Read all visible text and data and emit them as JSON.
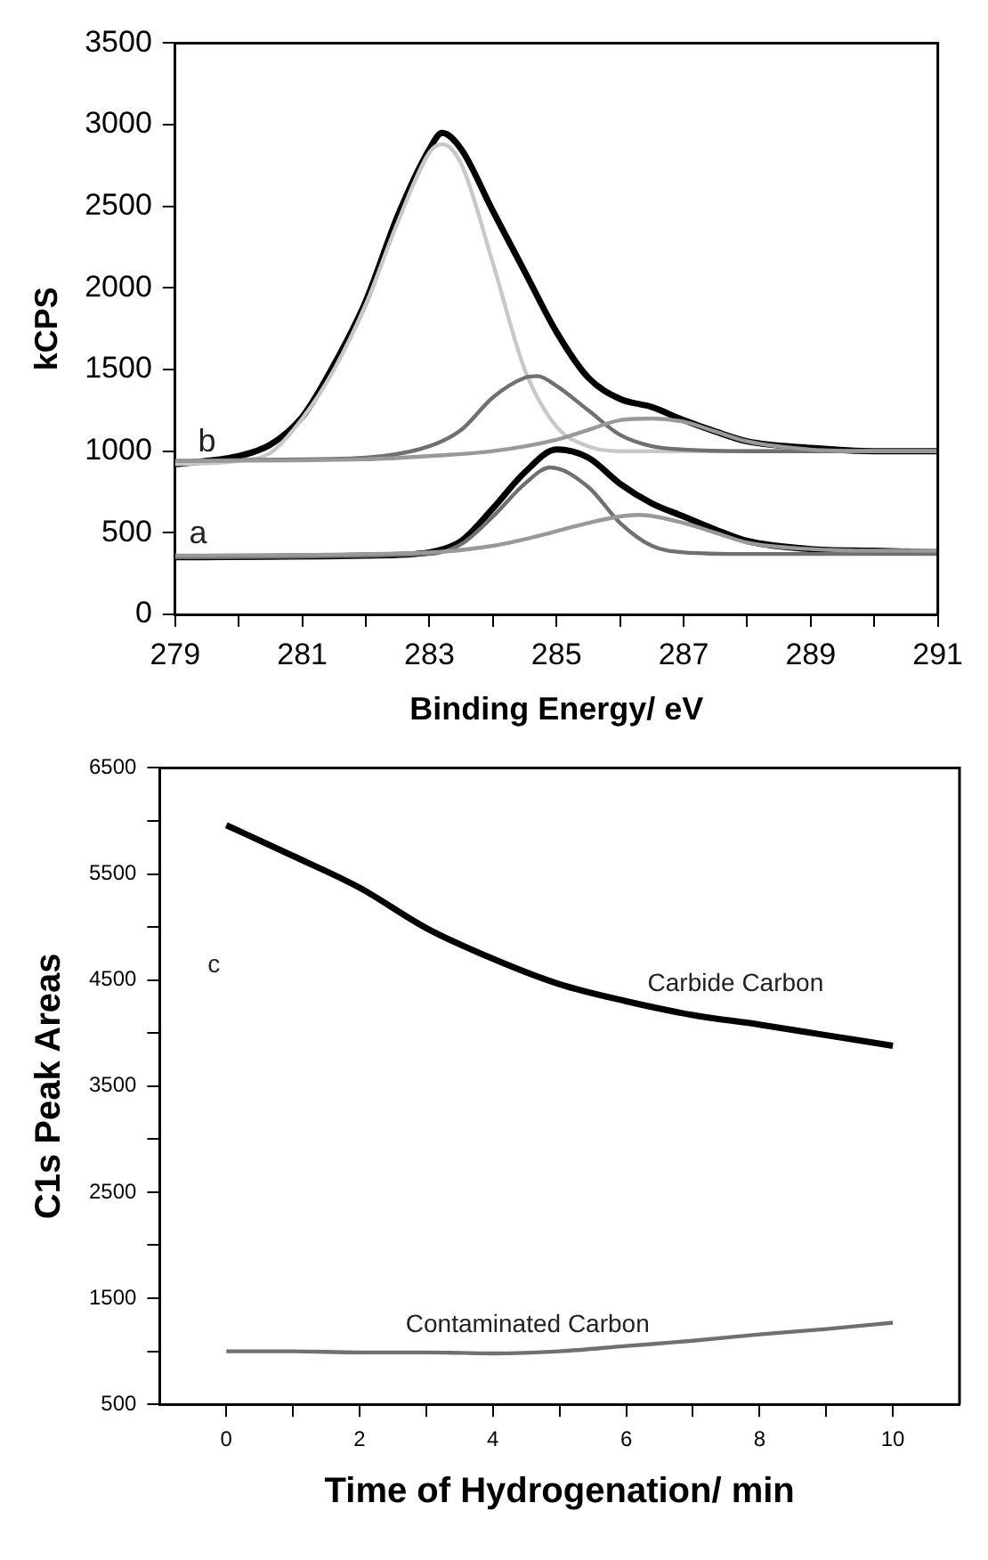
{
  "chart_data": [
    {
      "type": "line",
      "xlabel": "Binding Energy/ eV",
      "ylabel": "kCPS",
      "xlim": [
        279,
        291
      ],
      "ylim": [
        0,
        3500
      ],
      "xticks": [
        279,
        {
          "value": 280,
          "label": null
        },
        281,
        {
          "value": 282,
          "label": null
        },
        283,
        {
          "value": 284,
          "label": null
        },
        285,
        {
          "value": 286,
          "label": null
        },
        287,
        {
          "value": 288,
          "label": null
        },
        289,
        {
          "value": 290,
          "label": null
        },
        291
      ],
      "yticks": [
        0,
        500,
        1000,
        1500,
        2000,
        2500,
        3000,
        3500
      ],
      "grid": false,
      "legend": false,
      "marker": "none",
      "line_style": "solid",
      "annotations": [
        "b",
        "a"
      ],
      "series": [
        {
          "color": "#999999",
          "x": [
            279,
            282,
            283,
            284,
            285,
            285.5,
            286,
            286.5,
            287,
            287.5,
            288,
            289,
            290,
            291
          ],
          "values": [
            940,
            950,
            970,
            1000,
            1070,
            1130,
            1190,
            1200,
            1180,
            1120,
            1060,
            1010,
            1000,
            1000
          ]
        },
        {
          "color": "#707070",
          "x": [
            279,
            281,
            282,
            283,
            283.5,
            284,
            284.5,
            284.7,
            285,
            285.5,
            286,
            286.5,
            287,
            288,
            291
          ],
          "values": [
            940,
            950,
            960,
            1030,
            1130,
            1330,
            1450,
            1460,
            1400,
            1250,
            1100,
            1030,
            1010,
            1000,
            1000
          ]
        },
        {
          "color": "#c8c8c8",
          "x": [
            279,
            280,
            280.5,
            281,
            281.5,
            282,
            282.5,
            283,
            283.2,
            283.5,
            284,
            284.5,
            285,
            285.5,
            286,
            287,
            291
          ],
          "values": [
            920,
            940,
            990,
            1200,
            1500,
            1900,
            2400,
            2830,
            2880,
            2760,
            2150,
            1500,
            1150,
            1030,
            1000,
            1000,
            1000
          ]
        },
        {
          "color": "#000000",
          "x": [
            279,
            280,
            280.5,
            281,
            281.5,
            282,
            282.5,
            283,
            283.2,
            283.5,
            284,
            284.5,
            285,
            285.5,
            286,
            286.5,
            287,
            287.5,
            288,
            289,
            290,
            291
          ],
          "values": [
            920,
            970,
            1040,
            1210,
            1530,
            1920,
            2440,
            2850,
            2950,
            2850,
            2470,
            2100,
            1730,
            1450,
            1320,
            1270,
            1190,
            1120,
            1060,
            1020,
            1000,
            1000
          ]
        },
        {
          "color": "#999999",
          "x": [
            279,
            283,
            284,
            284.5,
            285,
            285.5,
            286,
            286.3,
            287,
            287.5,
            288,
            289,
            290,
            291
          ],
          "values": [
            360,
            380,
            420,
            460,
            510,
            560,
            600,
            610,
            560,
            500,
            440,
            400,
            390,
            390
          ]
        },
        {
          "color": "#707070",
          "x": [
            279,
            283,
            283.5,
            284,
            284.5,
            284.9,
            285.5,
            286,
            286.5,
            287,
            288,
            291
          ],
          "values": [
            350,
            370,
            430,
            600,
            800,
            900,
            780,
            560,
            420,
            380,
            370,
            370
          ]
        },
        {
          "color": "#000000",
          "x": [
            279,
            282,
            283,
            283.5,
            284,
            284.5,
            285,
            285.5,
            286,
            286.5,
            287,
            287.5,
            288,
            289,
            290,
            291
          ],
          "values": [
            350,
            360,
            380,
            450,
            650,
            870,
            1010,
            960,
            800,
            680,
            600,
            520,
            450,
            400,
            390,
            380
          ]
        }
      ]
    },
    {
      "type": "line",
      "xlabel": "Time of Hydrogenation/ min",
      "ylabel": "C1s Peak Areas",
      "xlim": [
        -1,
        11
      ],
      "ylim": [
        500,
        6500
      ],
      "xticks": [
        0,
        {
          "value": 1,
          "label": null
        },
        2,
        {
          "value": 3,
          "label": null
        },
        4,
        {
          "value": 5,
          "label": null
        },
        6,
        {
          "value": 7,
          "label": null
        },
        8,
        {
          "value": 9,
          "label": null
        },
        10
      ],
      "yticks": [
        500,
        {
          "value": 1000,
          "label": null
        },
        1500,
        {
          "value": 2000,
          "label": null
        },
        2500,
        {
          "value": 3000,
          "label": null
        },
        3500,
        {
          "value": 4000,
          "label": null
        },
        4500,
        {
          "value": 5000,
          "label": null
        },
        5500,
        {
          "value": 6000,
          "label": null
        },
        6500
      ],
      "grid": false,
      "legend": false,
      "marker": "none",
      "line_style": "solid",
      "annotations": [
        "c",
        "Carbide Carbon",
        "Contaminated Carbon"
      ],
      "x": [
        0,
        1,
        2,
        3,
        4,
        5,
        6,
        7,
        8,
        9,
        10
      ],
      "series": [
        {
          "color": "#000000",
          "values": [
            5960,
            5670,
            5370,
            4990,
            4700,
            4460,
            4300,
            4170,
            4080,
            3980,
            3880
          ]
        },
        {
          "color": "#707070",
          "values": [
            1000,
            1000,
            990,
            990,
            980,
            1000,
            1050,
            1100,
            1160,
            1210,
            1270
          ]
        }
      ]
    }
  ]
}
